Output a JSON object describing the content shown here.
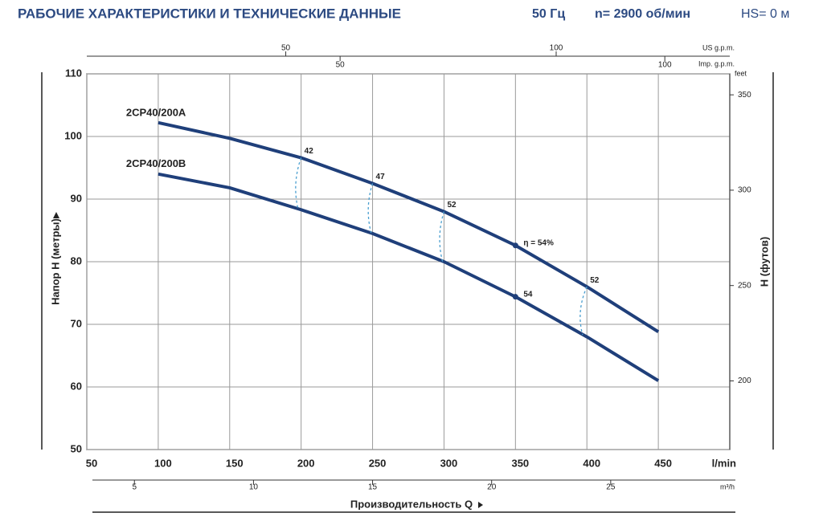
{
  "chart_data": {
    "type": "line",
    "title": "РАБОЧИЕ ХАРАКТЕРИСТИКИ И ТЕХНИЧЕСКИЕ ДАННЫЕ",
    "subtitle": [
      "50 Гц",
      "n= 2900 об/мин",
      "HS= 0 м"
    ],
    "x_label": "Производительность Q",
    "x_unit": "l/min",
    "y_label": "Напор H (метры)",
    "y2_label": "H (футов)",
    "y2_unit": "feet",
    "x": [
      100,
      150,
      200,
      250,
      300,
      350,
      400,
      450
    ],
    "series": [
      {
        "name": "2CP40/200A",
        "color": "#1f3f7a",
        "values": [
          102.2,
          99.7,
          96.6,
          92.5,
          88.0,
          82.6,
          76.0,
          68.8
        ]
      },
      {
        "name": "2CP40/200B",
        "color": "#1f3f7a",
        "values": [
          94.0,
          91.8,
          88.3,
          84.5,
          80.0,
          74.4,
          68.0,
          61.0
        ]
      }
    ],
    "annotations": [
      {
        "text": "42",
        "x": [
          200,
          198
        ],
        "y": [
          96.6,
          88.3
        ]
      },
      {
        "text": "47",
        "x": [
          250,
          249
        ],
        "y": [
          92.5,
          84.6
        ]
      },
      {
        "text": "52",
        "x": [
          300,
          299
        ],
        "y": [
          88.0,
          80.0
        ]
      },
      {
        "text": "η = 54%",
        "x": [
          350
        ],
        "y": [
          82.6
        ]
      },
      {
        "text": "54",
        "x": [
          350
        ],
        "y": [
          74.4
        ]
      },
      {
        "text": "52",
        "x": [
          400,
          397
        ],
        "y": [
          76.0,
          68.3
        ]
      }
    ],
    "xlim": [
      50,
      500
    ],
    "xticks": [
      50,
      100,
      150,
      200,
      250,
      300,
      350,
      400,
      450
    ],
    "ylim": [
      50,
      110
    ],
    "yticks": [
      50,
      60,
      70,
      80,
      90,
      100,
      110
    ],
    "y2lim": [
      164.0,
      361.0
    ],
    "y2ticks": [
      200,
      250,
      300,
      350
    ],
    "x2_axes": [
      {
        "label": "US g.p.m.",
        "xlim": [
          13.21,
          132.1
        ],
        "ticks": [
          50,
          100
        ]
      },
      {
        "label": "Imp. g.p.m.",
        "xlim": [
          11.0,
          110.0
        ],
        "ticks": [
          50,
          100
        ]
      },
      {
        "label": "m³/h",
        "xlim": [
          3.0,
          30.0
        ],
        "ticks": [
          5,
          10,
          15,
          20,
          25
        ]
      }
    ],
    "grid": true
  }
}
